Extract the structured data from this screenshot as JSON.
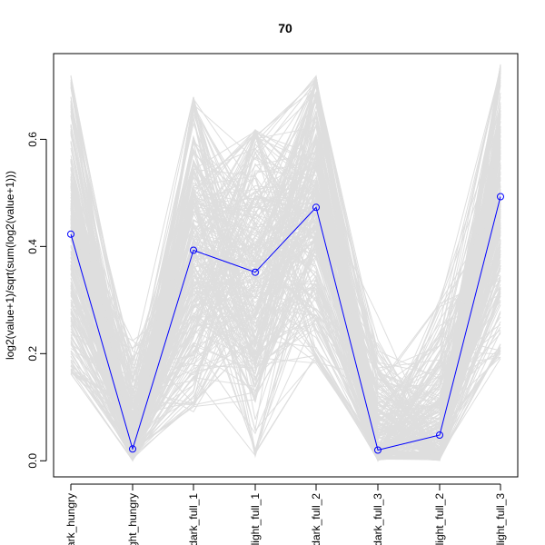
{
  "chart_data": {
    "type": "line",
    "title": "70",
    "ylabel": "log2(value+1)/sqrt(sum(log2(value+1)))",
    "xlabel": "",
    "categories": [
      "dark_hungry",
      "light_hungry",
      "dark_full_1",
      "light_full_1",
      "dark_full_2",
      "dark_full_3",
      "light_full_2",
      "light_full_3"
    ],
    "ylim": [
      -0.03,
      0.76
    ],
    "yticks": [
      0.0,
      0.2,
      0.4,
      0.6
    ],
    "ytick_labels": [
      "0.0",
      "0.2",
      "0.4",
      "0.6"
    ],
    "grid": false,
    "highlight_series": {
      "color": "#0000ff",
      "marker": "open-circle",
      "values": [
        0.423,
        0.022,
        0.393,
        0.352,
        0.473,
        0.02,
        0.048,
        0.493
      ]
    },
    "background_series": {
      "color": "#dedede",
      "count": 260,
      "description_ranges": {
        "min": [
          0.16,
          0.0,
          0.09,
          0.0,
          0.18,
          0.0,
          0.0,
          0.19
        ],
        "max": [
          0.72,
          0.32,
          0.68,
          0.62,
          0.72,
          0.33,
          0.39,
          0.74
        ]
      }
    }
  }
}
